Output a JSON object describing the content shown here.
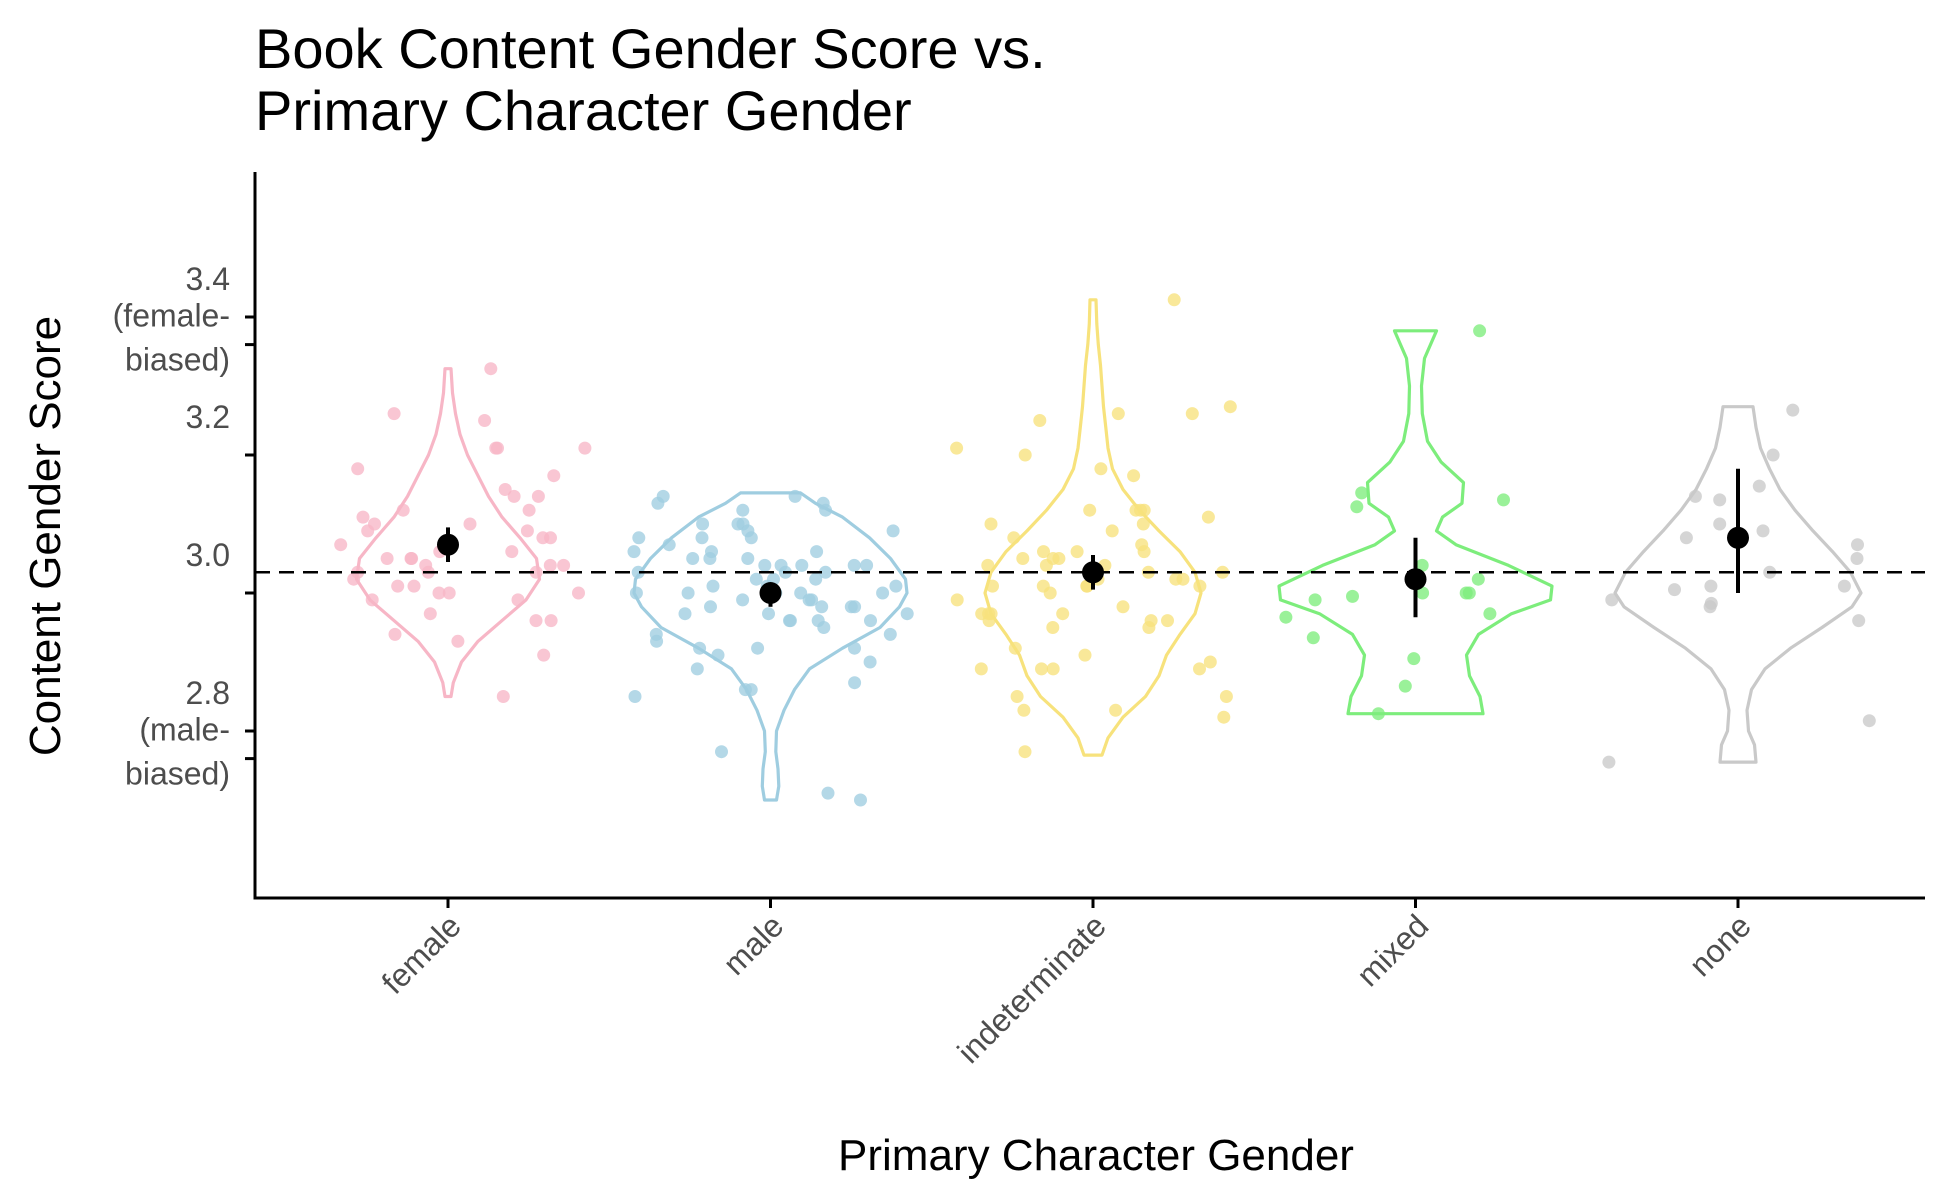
{
  "chart_data": {
    "type": "violin",
    "title_lines": [
      "Book Content Gender Score vs.",
      "Primary Character Gender"
    ],
    "xlabel": "Primary Character Gender",
    "ylabel": "Content Gender Score",
    "ylim": [
      2.67,
      3.46
    ],
    "y_ticks": [
      2.8,
      3.0,
      3.2,
      3.4
    ],
    "y_tick_labels": [
      "2.8",
      "3.0",
      "3.2",
      "3.4"
    ],
    "y_annotations": [
      {
        "y": 3.36,
        "lines": [
          "(female-",
          "biased)"
        ]
      },
      {
        "y": 2.76,
        "lines": [
          "(male-",
          "biased)"
        ]
      }
    ],
    "reference_line": {
      "y": 3.03,
      "style": "dashed"
    },
    "grid": false,
    "legend": "none",
    "categories": [
      "female",
      "male",
      "indeterminate",
      "mixed",
      "none"
    ],
    "colors": [
      "#f7b6c6",
      "#9fcde0",
      "#f7e27c",
      "#7ded7c",
      "#c9c9c9"
    ],
    "means": [
      3.07,
      3.0,
      3.03,
      3.02,
      3.08
    ],
    "ci_low": [
      3.045,
      2.98,
      3.005,
      2.965,
      3.0
    ],
    "ci_high": [
      3.095,
      3.015,
      3.055,
      3.08,
      3.18
    ],
    "violins": [
      {
        "ymin": 2.85,
        "ymax": 3.325,
        "profile": [
          [
            2.85,
            0.02
          ],
          [
            2.87,
            0.035
          ],
          [
            2.9,
            0.09
          ],
          [
            2.93,
            0.2
          ],
          [
            2.96,
            0.36
          ],
          [
            2.99,
            0.52
          ],
          [
            3.02,
            0.61
          ],
          [
            3.05,
            0.59
          ],
          [
            3.08,
            0.48
          ],
          [
            3.11,
            0.36
          ],
          [
            3.14,
            0.27
          ],
          [
            3.17,
            0.2
          ],
          [
            3.2,
            0.13
          ],
          [
            3.23,
            0.08
          ],
          [
            3.26,
            0.05
          ],
          [
            3.29,
            0.03
          ],
          [
            3.325,
            0.02
          ]
        ]
      },
      {
        "ymin": 2.7,
        "ymax": 3.145,
        "profile": [
          [
            2.7,
            0.04
          ],
          [
            2.72,
            0.055
          ],
          [
            2.745,
            0.05
          ],
          [
            2.77,
            0.035
          ],
          [
            2.8,
            0.04
          ],
          [
            2.83,
            0.09
          ],
          [
            2.86,
            0.16
          ],
          [
            2.89,
            0.26
          ],
          [
            2.92,
            0.48
          ],
          [
            2.95,
            0.73
          ],
          [
            2.98,
            0.86
          ],
          [
            3.0,
            0.91
          ],
          [
            3.02,
            0.9
          ],
          [
            3.05,
            0.8
          ],
          [
            3.08,
            0.66
          ],
          [
            3.11,
            0.48
          ],
          [
            3.13,
            0.3
          ],
          [
            3.145,
            0.2
          ]
        ]
      },
      {
        "ymin": 2.765,
        "ymax": 3.425,
        "profile": [
          [
            2.765,
            0.06
          ],
          [
            2.79,
            0.1
          ],
          [
            2.82,
            0.2
          ],
          [
            2.85,
            0.35
          ],
          [
            2.88,
            0.44
          ],
          [
            2.91,
            0.49
          ],
          [
            2.94,
            0.58
          ],
          [
            2.97,
            0.68
          ],
          [
            3.0,
            0.72
          ],
          [
            3.03,
            0.68
          ],
          [
            3.06,
            0.58
          ],
          [
            3.09,
            0.44
          ],
          [
            3.12,
            0.31
          ],
          [
            3.15,
            0.2
          ],
          [
            3.18,
            0.13
          ],
          [
            3.21,
            0.1
          ],
          [
            3.24,
            0.085
          ],
          [
            3.27,
            0.07
          ],
          [
            3.3,
            0.06
          ],
          [
            3.33,
            0.05
          ],
          [
            3.36,
            0.035
          ],
          [
            3.39,
            0.025
          ],
          [
            3.425,
            0.02
          ]
        ]
      },
      {
        "ymin": 2.825,
        "ymax": 3.38,
        "profile": [
          [
            2.825,
            0.45
          ],
          [
            2.85,
            0.43
          ],
          [
            2.88,
            0.36
          ],
          [
            2.91,
            0.34
          ],
          [
            2.94,
            0.42
          ],
          [
            2.97,
            0.64
          ],
          [
            2.99,
            0.9
          ],
          [
            3.01,
            0.91
          ],
          [
            3.04,
            0.62
          ],
          [
            3.07,
            0.27
          ],
          [
            3.09,
            0.14
          ],
          [
            3.11,
            0.18
          ],
          [
            3.13,
            0.31
          ],
          [
            3.16,
            0.32
          ],
          [
            3.19,
            0.17
          ],
          [
            3.22,
            0.08
          ],
          [
            3.26,
            0.045
          ],
          [
            3.3,
            0.04
          ],
          [
            3.34,
            0.06
          ],
          [
            3.38,
            0.14
          ]
        ]
      },
      {
        "ymin": 2.755,
        "ymax": 3.27,
        "profile": [
          [
            2.755,
            0.12
          ],
          [
            2.78,
            0.11
          ],
          [
            2.8,
            0.07
          ],
          [
            2.83,
            0.06
          ],
          [
            2.86,
            0.09
          ],
          [
            2.89,
            0.18
          ],
          [
            2.92,
            0.35
          ],
          [
            2.95,
            0.56
          ],
          [
            2.98,
            0.76
          ],
          [
            3.0,
            0.82
          ],
          [
            3.03,
            0.75
          ],
          [
            3.06,
            0.63
          ],
          [
            3.09,
            0.5
          ],
          [
            3.12,
            0.38
          ],
          [
            3.15,
            0.28
          ],
          [
            3.18,
            0.21
          ],
          [
            3.21,
            0.15
          ],
          [
            3.24,
            0.12
          ],
          [
            3.27,
            0.1
          ]
        ]
      }
    ],
    "points": [
      [
        3.325,
        3.26,
        3.25,
        3.21,
        3.21,
        3.21,
        3.18,
        3.17,
        3.15,
        3.14,
        3.14,
        3.12,
        3.12,
        3.11,
        3.1,
        3.1,
        3.09,
        3.09,
        3.08,
        3.08,
        3.07,
        3.06,
        3.06,
        3.05,
        3.05,
        3.05,
        3.04,
        3.04,
        3.04,
        3.03,
        3.03,
        3.03,
        3.02,
        3.01,
        3.01,
        3.0,
        3.0,
        3.0,
        2.99,
        2.99,
        2.97,
        2.96,
        2.96,
        2.94,
        2.93,
        2.91,
        2.85
      ],
      [
        3.14,
        3.14,
        3.13,
        3.13,
        3.12,
        3.12,
        3.1,
        3.1,
        3.1,
        3.09,
        3.09,
        3.08,
        3.08,
        3.08,
        3.07,
        3.06,
        3.06,
        3.06,
        3.05,
        3.05,
        3.05,
        3.04,
        3.04,
        3.04,
        3.04,
        3.04,
        3.03,
        3.03,
        3.03,
        3.02,
        3.02,
        3.02,
        3.01,
        3.01,
        3.01,
        3.0,
        3.0,
        3.0,
        3.0,
        3.0,
        2.99,
        2.99,
        2.99,
        2.98,
        2.98,
        2.98,
        2.98,
        2.97,
        2.97,
        2.97,
        2.96,
        2.96,
        2.96,
        2.96,
        2.95,
        2.94,
        2.94,
        2.93,
        2.92,
        2.92,
        2.92,
        2.91,
        2.9,
        2.89,
        2.87,
        2.86,
        2.86,
        2.85,
        2.77,
        2.71,
        2.7
      ],
      [
        3.425,
        3.27,
        3.26,
        3.26,
        3.25,
        3.21,
        3.2,
        3.18,
        3.17,
        3.12,
        3.12,
        3.12,
        3.12,
        3.11,
        3.1,
        3.1,
        3.09,
        3.08,
        3.07,
        3.06,
        3.06,
        3.06,
        3.05,
        3.05,
        3.05,
        3.04,
        3.04,
        3.04,
        3.03,
        3.03,
        3.02,
        3.02,
        3.02,
        3.01,
        3.01,
        3.01,
        3.01,
        3.01,
        3.0,
        2.99,
        2.98,
        2.97,
        2.97,
        2.97,
        2.97,
        2.96,
        2.96,
        2.96,
        2.95,
        2.95,
        2.92,
        2.91,
        2.9,
        2.89,
        2.89,
        2.89,
        2.89,
        2.85,
        2.85,
        2.83,
        2.83,
        2.82,
        2.77
      ],
      [
        3.38,
        3.145,
        3.135,
        3.125,
        3.04,
        3.02,
        3.0,
        3.0,
        3.0,
        2.995,
        2.99,
        2.97,
        2.965,
        2.935,
        2.905,
        2.865,
        2.825
      ],
      [
        3.265,
        3.2,
        3.155,
        3.14,
        3.135,
        3.1,
        3.09,
        3.08,
        3.07,
        3.05,
        3.03,
        3.01,
        3.01,
        3.005,
        2.99,
        2.985,
        2.98,
        2.96,
        2.815,
        2.755
      ]
    ]
  }
}
